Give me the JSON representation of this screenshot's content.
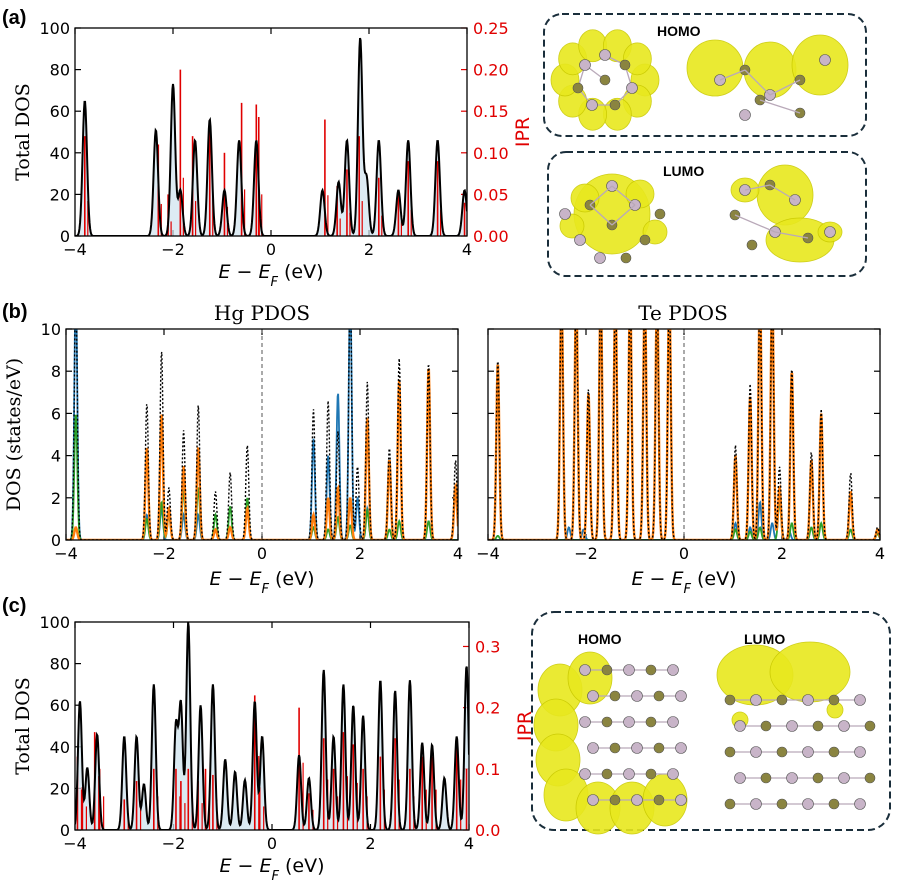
{
  "colors": {
    "total": "#000000",
    "ipr": "#e00000",
    "fill": "#cfe3ee",
    "blue": "#1f77b4",
    "orange": "#ff7f0e",
    "green": "#2ca02c",
    "dash": "#1a2e3b",
    "iso": "#e8e81e",
    "atomPink": "#c8b4c8",
    "atomOlive": "#8a8440"
  },
  "panel_labels": {
    "a": "(a)",
    "b": "(b)",
    "c": "(c)"
  },
  "xlabel": "E − E",
  "xlabel_sub": "F",
  "xlabel_unit": " (eV)",
  "boxes": {
    "a_top": "HOMO",
    "a_bottom": "LUMO",
    "c_left": "HOMO",
    "c_right": "LUMO"
  },
  "chart_data": [
    {
      "id": "a",
      "type": "line",
      "ylabel": "Total DOS",
      "y2label": "IPR",
      "xlim": [
        -4,
        4
      ],
      "ylim": [
        0,
        100
      ],
      "y2lim": [
        0,
        0.25
      ],
      "xticks": [
        -4,
        -2,
        0,
        2,
        4
      ],
      "yticks": [
        0,
        20,
        40,
        60,
        80,
        100
      ],
      "y2ticks": [
        0.0,
        0.05,
        0.1,
        0.15,
        0.2,
        0.25
      ],
      "dos_peaks": [
        {
          "e": -3.8,
          "h": 65
        },
        {
          "e": -2.35,
          "h": 51
        },
        {
          "e": -2.0,
          "h": 73
        },
        {
          "e": -1.85,
          "h": 22
        },
        {
          "e": -1.55,
          "h": 46
        },
        {
          "e": -1.25,
          "h": 56
        },
        {
          "e": -0.95,
          "h": 22
        },
        {
          "e": -0.65,
          "h": 46
        },
        {
          "e": -0.3,
          "h": 46
        },
        {
          "e": 1.05,
          "h": 22
        },
        {
          "e": 1.38,
          "h": 26
        },
        {
          "e": 1.55,
          "h": 46
        },
        {
          "e": 1.82,
          "h": 95
        },
        {
          "e": 1.95,
          "h": 28
        },
        {
          "e": 2.2,
          "h": 46
        },
        {
          "e": 2.6,
          "h": 22
        },
        {
          "e": 2.8,
          "h": 46
        },
        {
          "e": 3.4,
          "h": 46
        },
        {
          "e": 3.95,
          "h": 22
        }
      ],
      "ipr": [
        {
          "e": -3.8,
          "v": 0.12
        },
        {
          "e": -2.3,
          "v": 0.11
        },
        {
          "e": -2.1,
          "v": 0.05
        },
        {
          "e": -1.85,
          "v": 0.2
        },
        {
          "e": -1.6,
          "v": 0.12
        },
        {
          "e": -1.25,
          "v": 0.14
        },
        {
          "e": -0.95,
          "v": 0.1
        },
        {
          "e": -0.6,
          "v": 0.16
        },
        {
          "e": -0.3,
          "v": 0.158
        },
        {
          "e": -0.25,
          "v": 0.143
        },
        {
          "e": 1.1,
          "v": 0.14
        },
        {
          "e": 1.35,
          "v": 0.06
        },
        {
          "e": 1.55,
          "v": 0.08
        },
        {
          "e": 1.8,
          "v": 0.12
        },
        {
          "e": 2.2,
          "v": 0.07
        },
        {
          "e": 2.6,
          "v": 0.05
        },
        {
          "e": 2.8,
          "v": 0.09
        },
        {
          "e": 3.4,
          "v": 0.09
        },
        {
          "e": 3.95,
          "v": 0.04
        }
      ]
    },
    {
      "id": "b1",
      "type": "line",
      "title": "Hg PDOS",
      "ylabel": "DOS (states/eV)",
      "xlim": [
        -4,
        4
      ],
      "ylim": [
        0,
        10
      ],
      "xticks": [
        -4,
        -2,
        0,
        2,
        4
      ],
      "yticks": [
        0,
        2,
        4,
        6,
        8,
        10
      ],
      "total_dotted": [
        {
          "e": -3.8,
          "h": 12
        },
        {
          "e": -2.35,
          "h": 6.5
        },
        {
          "e": -2.05,
          "h": 9
        },
        {
          "e": -1.9,
          "h": 2.5
        },
        {
          "e": -1.6,
          "h": 5.2
        },
        {
          "e": -1.3,
          "h": 6.4
        },
        {
          "e": -0.95,
          "h": 2.3
        },
        {
          "e": -0.65,
          "h": 3.2
        },
        {
          "e": -0.3,
          "h": 4.5
        },
        {
          "e": 1.05,
          "h": 6.2
        },
        {
          "e": 1.35,
          "h": 6.6
        },
        {
          "e": 1.55,
          "h": 5.2
        },
        {
          "e": 1.8,
          "h": 12
        },
        {
          "e": 1.95,
          "h": 3.5
        },
        {
          "e": 2.15,
          "h": 7.5
        },
        {
          "e": 2.6,
          "h": 4.4
        },
        {
          "e": 2.8,
          "h": 8.6
        },
        {
          "e": 3.4,
          "h": 8.4
        },
        {
          "e": 3.95,
          "h": 3.8
        }
      ],
      "blue": [
        {
          "e": -3.8,
          "h": 12
        },
        {
          "e": -2.35,
          "h": 1.2
        },
        {
          "e": -2.05,
          "h": 1.5
        },
        {
          "e": -1.6,
          "h": 1.2
        },
        {
          "e": -1.3,
          "h": 1.2
        },
        {
          "e": 1.05,
          "h": 4.8
        },
        {
          "e": 1.35,
          "h": 4
        },
        {
          "e": 1.55,
          "h": 7
        },
        {
          "e": 1.8,
          "h": 12
        },
        {
          "e": 1.95,
          "h": 2
        },
        {
          "e": 2.15,
          "h": 1.5
        }
      ],
      "orange": [
        {
          "e": -3.8,
          "h": 0.6
        },
        {
          "e": -2.35,
          "h": 4.4
        },
        {
          "e": -2.05,
          "h": 6
        },
        {
          "e": -1.9,
          "h": 1.5
        },
        {
          "e": -1.6,
          "h": 3.5
        },
        {
          "e": -1.3,
          "h": 4.4
        },
        {
          "e": -0.95,
          "h": 0.5
        },
        {
          "e": -0.65,
          "h": 0.6
        },
        {
          "e": -0.3,
          "h": 1.5
        },
        {
          "e": 1.05,
          "h": 1.2
        },
        {
          "e": 1.35,
          "h": 2
        },
        {
          "e": 1.55,
          "h": 2.5
        },
        {
          "e": 1.8,
          "h": 2
        },
        {
          "e": 2.15,
          "h": 5.8
        },
        {
          "e": 2.6,
          "h": 3.8
        },
        {
          "e": 2.8,
          "h": 7.6
        },
        {
          "e": 3.4,
          "h": 8.2
        },
        {
          "e": 3.95,
          "h": 2.6
        }
      ],
      "green": [
        {
          "e": -3.8,
          "h": 6
        },
        {
          "e": -2.35,
          "h": 1.0
        },
        {
          "e": -2.05,
          "h": 1.8
        },
        {
          "e": -1.9,
          "h": 1.2
        },
        {
          "e": -1.6,
          "h": 2.4
        },
        {
          "e": -1.3,
          "h": 2.5
        },
        {
          "e": -0.95,
          "h": 1.2
        },
        {
          "e": -0.65,
          "h": 1.6
        },
        {
          "e": -0.3,
          "h": 2
        },
        {
          "e": 1.05,
          "h": 0.6
        },
        {
          "e": 1.35,
          "h": 0.5
        },
        {
          "e": 1.55,
          "h": 1.1
        },
        {
          "e": 1.8,
          "h": 0.7
        },
        {
          "e": 2.15,
          "h": 1.4
        },
        {
          "e": 2.6,
          "h": 0.5
        },
        {
          "e": 2.8,
          "h": 0.9
        },
        {
          "e": 3.4,
          "h": 0.9
        }
      ]
    },
    {
      "id": "b2",
      "type": "line",
      "title": "Te PDOS",
      "xlim": [
        -4,
        4
      ],
      "ylim": [
        0,
        10
      ],
      "xticks": [
        -4,
        -2,
        0,
        2,
        4
      ],
      "total_dotted": [
        {
          "e": -3.8,
          "h": 8.6
        },
        {
          "e": -2.5,
          "h": 12
        },
        {
          "e": -2.2,
          "h": 12
        },
        {
          "e": -1.95,
          "h": 7.2
        },
        {
          "e": -1.7,
          "h": 12
        },
        {
          "e": -1.4,
          "h": 12
        },
        {
          "e": -1.1,
          "h": 12
        },
        {
          "e": -0.8,
          "h": 12
        },
        {
          "e": -0.55,
          "h": 12
        },
        {
          "e": -0.3,
          "h": 12
        },
        {
          "e": 1.05,
          "h": 4.5
        },
        {
          "e": 1.35,
          "h": 7.4
        },
        {
          "e": 1.55,
          "h": 12
        },
        {
          "e": 1.8,
          "h": 12
        },
        {
          "e": 1.95,
          "h": 3.5
        },
        {
          "e": 2.2,
          "h": 8.2
        },
        {
          "e": 2.6,
          "h": 4.2
        },
        {
          "e": 2.8,
          "h": 6.2
        },
        {
          "e": 3.4,
          "h": 3.2
        },
        {
          "e": 3.95,
          "h": 0.6
        }
      ],
      "orange": [
        {
          "e": -3.8,
          "h": 8.4
        },
        {
          "e": -2.5,
          "h": 12
        },
        {
          "e": -2.2,
          "h": 12
        },
        {
          "e": -1.95,
          "h": 7
        },
        {
          "e": -1.7,
          "h": 12
        },
        {
          "e": -1.4,
          "h": 12
        },
        {
          "e": -1.1,
          "h": 12
        },
        {
          "e": -0.8,
          "h": 12
        },
        {
          "e": -0.55,
          "h": 12
        },
        {
          "e": -0.3,
          "h": 12
        },
        {
          "e": 1.05,
          "h": 4
        },
        {
          "e": 1.35,
          "h": 6.8
        },
        {
          "e": 1.55,
          "h": 12
        },
        {
          "e": 1.8,
          "h": 12
        },
        {
          "e": 1.95,
          "h": 2.5
        },
        {
          "e": 2.2,
          "h": 8
        },
        {
          "e": 2.6,
          "h": 3.8
        },
        {
          "e": 2.8,
          "h": 6
        },
        {
          "e": 3.4,
          "h": 2.3
        },
        {
          "e": 3.95,
          "h": 0.5
        }
      ],
      "blue": [
        {
          "e": -2.35,
          "h": 0.6
        },
        {
          "e": -2.05,
          "h": 0.5
        },
        {
          "e": 1.05,
          "h": 0.8
        },
        {
          "e": 1.35,
          "h": 0.6
        },
        {
          "e": 1.55,
          "h": 1.8
        },
        {
          "e": 1.8,
          "h": 0.8
        },
        {
          "e": 2.15,
          "h": 0.4
        }
      ],
      "green": [
        {
          "e": -3.8,
          "h": 0.2
        },
        {
          "e": 1.05,
          "h": 0.5
        },
        {
          "e": 1.35,
          "h": 0.4
        },
        {
          "e": 1.55,
          "h": 0.6
        },
        {
          "e": 1.95,
          "h": 1.9
        },
        {
          "e": 2.2,
          "h": 0.8
        },
        {
          "e": 2.6,
          "h": 0.6
        },
        {
          "e": 2.8,
          "h": 0.8
        },
        {
          "e": 3.4,
          "h": 0.5
        },
        {
          "e": 3.95,
          "h": 0.3
        }
      ]
    },
    {
      "id": "c",
      "type": "line",
      "ylabel": "Total DOS",
      "y2label": "IPR",
      "xlim": [
        -4,
        4
      ],
      "ylim": [
        0,
        100
      ],
      "y2lim": [
        0,
        0.34
      ],
      "xticks": [
        -4,
        -2,
        0,
        2,
        4
      ],
      "yticks": [
        0,
        20,
        40,
        60,
        80,
        100
      ],
      "y2ticks": [
        0.0,
        0.1,
        0.2,
        0.3
      ],
      "dos_peaks": [
        {
          "e": -3.9,
          "h": 62
        },
        {
          "e": -3.75,
          "h": 30
        },
        {
          "e": -3.55,
          "h": 46
        },
        {
          "e": -3.0,
          "h": 45
        },
        {
          "e": -2.75,
          "h": 45
        },
        {
          "e": -2.6,
          "h": 22
        },
        {
          "e": -2.4,
          "h": 70
        },
        {
          "e": -1.95,
          "h": 50
        },
        {
          "e": -1.85,
          "h": 60
        },
        {
          "e": -1.7,
          "h": 100
        },
        {
          "e": -1.45,
          "h": 60
        },
        {
          "e": -1.2,
          "h": 70
        },
        {
          "e": -0.95,
          "h": 34
        },
        {
          "e": -0.75,
          "h": 28
        },
        {
          "e": -0.55,
          "h": 24
        },
        {
          "e": -0.35,
          "h": 62
        },
        {
          "e": -0.2,
          "h": 45
        },
        {
          "e": 0.55,
          "h": 36
        },
        {
          "e": 0.75,
          "h": 25
        },
        {
          "e": 1.05,
          "h": 77
        },
        {
          "e": 1.25,
          "h": 45
        },
        {
          "e": 1.45,
          "h": 70
        },
        {
          "e": 1.65,
          "h": 60
        },
        {
          "e": 1.85,
          "h": 55
        },
        {
          "e": 2.2,
          "h": 72
        },
        {
          "e": 2.5,
          "h": 67
        },
        {
          "e": 2.8,
          "h": 72
        },
        {
          "e": 3.05,
          "h": 42
        },
        {
          "e": 3.25,
          "h": 41
        },
        {
          "e": 3.5,
          "h": 25
        },
        {
          "e": 3.75,
          "h": 45
        },
        {
          "e": 3.95,
          "h": 79
        }
      ],
      "ipr": [
        {
          "e": -3.95,
          "v": 0.12
        },
        {
          "e": -3.85,
          "v": 0.07
        },
        {
          "e": -3.6,
          "v": 0.16
        },
        {
          "e": -3.5,
          "v": 0.1
        },
        {
          "e": -3.0,
          "v": 0.05
        },
        {
          "e": -2.75,
          "v": 0.08
        },
        {
          "e": -2.4,
          "v": 0.1
        },
        {
          "e": -1.95,
          "v": 0.1
        },
        {
          "e": -1.85,
          "v": 0.08
        },
        {
          "e": -1.7,
          "v": 0.1
        },
        {
          "e": -1.5,
          "v": 0.08
        },
        {
          "e": -1.35,
          "v": 0.1
        },
        {
          "e": -1.2,
          "v": 0.09
        },
        {
          "e": -0.35,
          "v": 0.22
        },
        {
          "e": -0.25,
          "v": 0.07
        },
        {
          "e": 0.55,
          "v": 0.2
        },
        {
          "e": 0.75,
          "v": 0.06
        },
        {
          "e": 1.05,
          "v": 0.15
        },
        {
          "e": 1.25,
          "v": 0.1
        },
        {
          "e": 1.45,
          "v": 0.16
        },
        {
          "e": 1.65,
          "v": 0.14
        },
        {
          "e": 1.85,
          "v": 0.1
        },
        {
          "e": 2.2,
          "v": 0.12
        },
        {
          "e": 2.5,
          "v": 0.15
        },
        {
          "e": 2.8,
          "v": 0.1
        },
        {
          "e": 3.05,
          "v": 0.12
        },
        {
          "e": 3.25,
          "v": 0.12
        },
        {
          "e": 3.75,
          "v": 0.15
        },
        {
          "e": 3.95,
          "v": 0.1
        }
      ]
    }
  ]
}
